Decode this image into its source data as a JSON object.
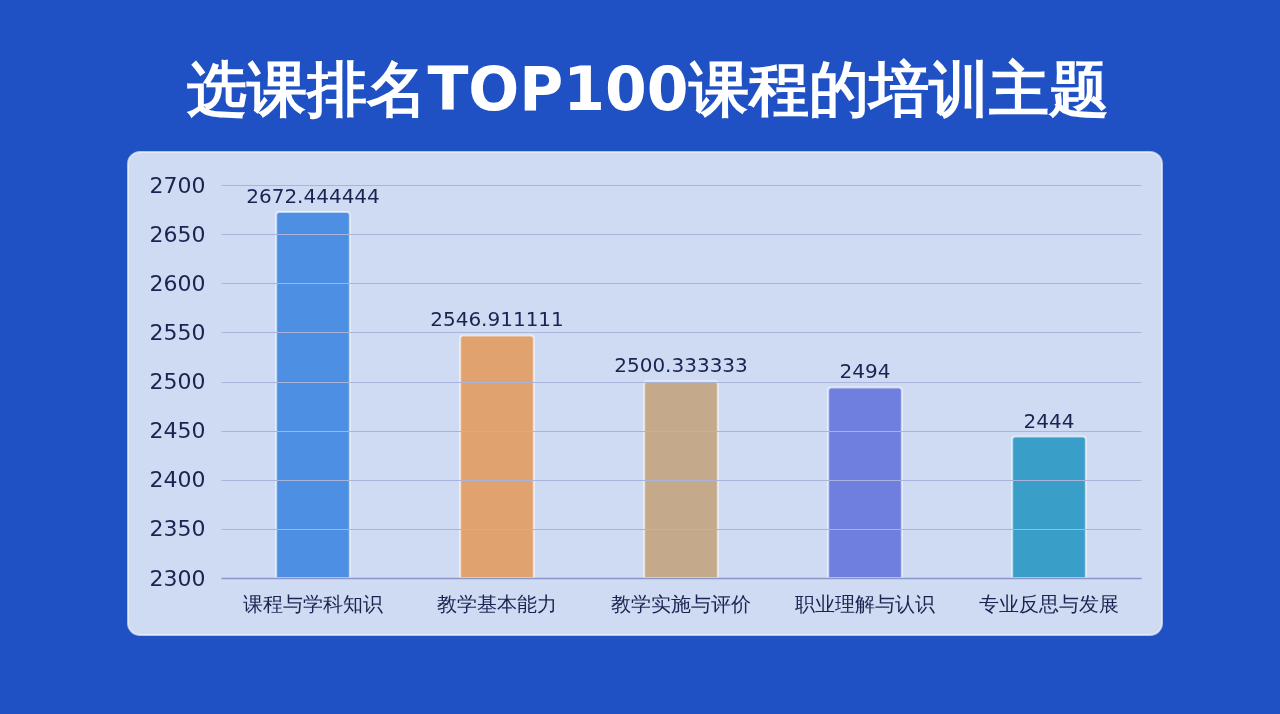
{
  "chart_data": {
    "type": "bar",
    "title": "选课排名TOP100课程的培训主题",
    "categories": [
      "课程与学科知识",
      "教学基本能力",
      "教学实施与评价",
      "职业理解与认识",
      "专业反思与发展"
    ],
    "values": [
      2672.444444,
      2546.911111,
      2500.333333,
      2494,
      2444
    ],
    "colors": [
      "#4d8fe3",
      "#e0a36f",
      "#c4a98a",
      "#6f7fe0",
      "#3a9fc8"
    ],
    "ylim": [
      2300,
      2700
    ],
    "yticks": [
      2300,
      2350,
      2400,
      2450,
      2500,
      2550,
      2600,
      2650,
      2700
    ],
    "grid": "y",
    "data_labels": true
  }
}
